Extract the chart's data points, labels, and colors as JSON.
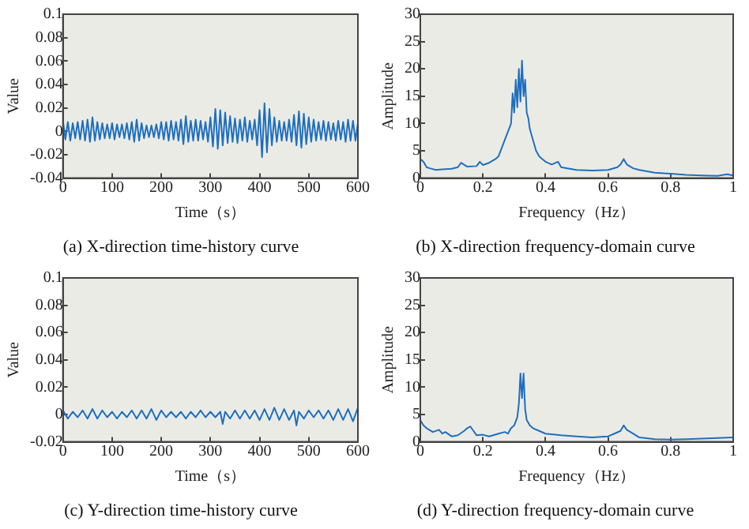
{
  "chart_data": [
    {
      "type": "line",
      "title": "(a) X-direction time-history curve",
      "xlabel": "Time（s）",
      "ylabel": "Value",
      "color": "#1f6fbf",
      "xlim": [
        0,
        600
      ],
      "ylim": [
        -0.04,
        0.1
      ],
      "xticks": [
        0,
        100,
        200,
        300,
        400,
        500,
        600
      ],
      "yticks": [
        -0.04,
        -0.02,
        0,
        0.02,
        0.04,
        0.06,
        0.08,
        0.1
      ],
      "x": [
        0,
        5,
        10,
        15,
        20,
        25,
        30,
        35,
        40,
        45,
        50,
        55,
        60,
        65,
        70,
        75,
        80,
        85,
        90,
        95,
        100,
        105,
        110,
        115,
        120,
        125,
        130,
        135,
        140,
        145,
        150,
        155,
        160,
        165,
        170,
        175,
        180,
        185,
        190,
        195,
        200,
        205,
        210,
        215,
        220,
        225,
        230,
        235,
        240,
        245,
        250,
        255,
        260,
        265,
        270,
        275,
        280,
        285,
        290,
        295,
        300,
        305,
        310,
        315,
        320,
        325,
        330,
        335,
        340,
        345,
        350,
        355,
        360,
        365,
        370,
        375,
        380,
        385,
        390,
        395,
        400,
        405,
        410,
        415,
        420,
        425,
        430,
        435,
        440,
        445,
        450,
        455,
        460,
        465,
        470,
        475,
        480,
        485,
        490,
        495,
        500,
        505,
        510,
        515,
        520,
        525,
        530,
        535,
        540,
        545,
        550,
        555,
        560,
        565,
        570,
        575,
        580,
        585,
        590,
        595,
        600
      ],
      "values": [
        0.009,
        -0.007,
        0.008,
        -0.008,
        0.007,
        -0.006,
        0.008,
        -0.007,
        0.009,
        -0.008,
        0.01,
        -0.009,
        0.012,
        -0.008,
        0.008,
        -0.007,
        0.007,
        -0.006,
        0.006,
        -0.006,
        0.007,
        -0.007,
        0.006,
        -0.005,
        0.006,
        -0.006,
        0.007,
        -0.007,
        0.008,
        -0.009,
        0.01,
        -0.008,
        0.007,
        -0.006,
        0.005,
        -0.005,
        0.005,
        -0.005,
        0.006,
        -0.006,
        0.008,
        -0.007,
        0.008,
        -0.008,
        0.009,
        -0.007,
        0.008,
        -0.008,
        0.01,
        -0.011,
        0.013,
        -0.009,
        0.009,
        -0.008,
        0.01,
        -0.008,
        0.009,
        -0.007,
        0.008,
        -0.009,
        0.012,
        -0.013,
        0.019,
        -0.015,
        0.018,
        -0.012,
        0.016,
        -0.01,
        0.013,
        -0.009,
        0.011,
        -0.01,
        0.01,
        -0.008,
        0.012,
        -0.009,
        0.009,
        -0.007,
        0.01,
        -0.012,
        0.018,
        -0.022,
        0.024,
        -0.018,
        0.019,
        -0.012,
        0.012,
        -0.009,
        0.009,
        -0.008,
        0.008,
        -0.008,
        0.01,
        -0.009,
        0.014,
        -0.012,
        0.017,
        -0.014,
        0.015,
        -0.011,
        0.012,
        -0.009,
        0.01,
        -0.008,
        0.008,
        -0.007,
        0.009,
        -0.008,
        0.008,
        -0.007,
        0.007,
        -0.008,
        0.009,
        -0.007,
        0.008,
        -0.009,
        0.01,
        -0.008,
        0.009,
        -0.008,
        0.007
      ]
    },
    {
      "type": "line",
      "title": "(b) X-direction frequency-domain curve",
      "xlabel": "Frequency（Hz）",
      "ylabel": "Amplitude",
      "color": "#1f6fbf",
      "xlim": [
        0,
        1
      ],
      "ylim": [
        0,
        30
      ],
      "xticks": [
        0,
        0.2,
        0.4,
        0.6,
        0.8,
        1
      ],
      "yticks": [
        0,
        5,
        10,
        15,
        20,
        25,
        30
      ],
      "x": [
        0,
        0.01,
        0.02,
        0.03,
        0.05,
        0.07,
        0.1,
        0.12,
        0.13,
        0.15,
        0.18,
        0.19,
        0.2,
        0.22,
        0.24,
        0.25,
        0.26,
        0.27,
        0.28,
        0.29,
        0.295,
        0.3,
        0.305,
        0.31,
        0.315,
        0.32,
        0.325,
        0.33,
        0.335,
        0.34,
        0.345,
        0.35,
        0.36,
        0.37,
        0.38,
        0.39,
        0.4,
        0.42,
        0.44,
        0.45,
        0.47,
        0.5,
        0.55,
        0.6,
        0.63,
        0.64,
        0.65,
        0.66,
        0.68,
        0.7,
        0.75,
        0.8,
        0.85,
        0.9,
        0.95,
        0.98,
        1
      ],
      "values": [
        3.5,
        3,
        2,
        1.8,
        1.5,
        1.6,
        1.7,
        2,
        2.8,
        2.1,
        2.2,
        3,
        2.4,
        2.8,
        3.5,
        4,
        5.5,
        7,
        8.5,
        10,
        15.5,
        12,
        18,
        13,
        20,
        14,
        21.5,
        15,
        18,
        12,
        11,
        9,
        7,
        5,
        4,
        3.5,
        3,
        2.5,
        3,
        2,
        1.8,
        1.5,
        1.4,
        1.5,
        2,
        2.5,
        3.5,
        2.5,
        1.8,
        1.5,
        1,
        0.8,
        0.6,
        0.5,
        0.4,
        0.7,
        0.5
      ]
    },
    {
      "type": "line",
      "title": "(c) Y-direction time-history curve",
      "xlabel": "Time（s）",
      "ylabel": "Value",
      "color": "#1f6fbf",
      "xlim": [
        0,
        600
      ],
      "ylim": [
        -0.02,
        0.1
      ],
      "xticks": [
        0,
        100,
        200,
        300,
        400,
        500,
        600
      ],
      "yticks": [
        -0.02,
        0,
        0.02,
        0.04,
        0.06,
        0.08,
        0.1
      ],
      "x": [
        0,
        10,
        20,
        30,
        40,
        50,
        60,
        70,
        80,
        90,
        100,
        110,
        120,
        130,
        140,
        150,
        160,
        170,
        180,
        190,
        200,
        210,
        220,
        230,
        240,
        250,
        260,
        270,
        280,
        290,
        300,
        310,
        320,
        325,
        330,
        340,
        350,
        360,
        370,
        380,
        390,
        400,
        410,
        420,
        430,
        440,
        450,
        460,
        470,
        475,
        480,
        490,
        500,
        510,
        520,
        530,
        540,
        550,
        560,
        570,
        580,
        590,
        600
      ],
      "values": [
        0.003,
        -0.003,
        0.002,
        -0.002,
        0.003,
        -0.003,
        0.004,
        -0.003,
        0.003,
        -0.002,
        0.002,
        -0.003,
        0.002,
        -0.002,
        0.003,
        -0.003,
        0.003,
        -0.003,
        0.004,
        -0.004,
        0.003,
        -0.002,
        0.002,
        -0.002,
        0.002,
        -0.003,
        0.002,
        -0.002,
        0.003,
        -0.002,
        0.002,
        -0.002,
        0.002,
        -0.007,
        0.002,
        -0.003,
        0.003,
        -0.003,
        0.003,
        -0.003,
        0.003,
        -0.004,
        0.004,
        -0.004,
        0.005,
        -0.004,
        0.004,
        -0.004,
        0.003,
        -0.008,
        0.002,
        -0.003,
        0.003,
        -0.002,
        0.003,
        -0.003,
        0.003,
        -0.004,
        0.004,
        -0.004,
        0.004,
        -0.005,
        0.005
      ]
    },
    {
      "type": "line",
      "title": "(d) Y-direction frequency-domain curve",
      "xlabel": "Frequency（Hz）",
      "ylabel": "Amplitude",
      "color": "#1f6fbf",
      "xlim": [
        0,
        1
      ],
      "ylim": [
        0,
        30
      ],
      "xticks": [
        0,
        0.2,
        0.4,
        0.6,
        0.8,
        1
      ],
      "yticks": [
        0,
        5,
        10,
        15,
        20,
        25,
        30
      ],
      "x": [
        0,
        0.01,
        0.02,
        0.04,
        0.06,
        0.07,
        0.08,
        0.1,
        0.12,
        0.14,
        0.15,
        0.16,
        0.17,
        0.18,
        0.2,
        0.22,
        0.25,
        0.27,
        0.28,
        0.29,
        0.3,
        0.31,
        0.315,
        0.32,
        0.325,
        0.33,
        0.335,
        0.34,
        0.35,
        0.36,
        0.38,
        0.4,
        0.45,
        0.5,
        0.55,
        0.6,
        0.62,
        0.64,
        0.65,
        0.66,
        0.68,
        0.7,
        0.75,
        0.8,
        0.85,
        0.9,
        0.95,
        1
      ],
      "values": [
        4,
        3,
        2.5,
        1.8,
        2.2,
        1.5,
        1.8,
        1,
        1.2,
        2,
        2.5,
        2.8,
        2,
        1.2,
        1.3,
        1,
        1.5,
        1.8,
        1.5,
        2.5,
        3,
        4.5,
        7,
        12.5,
        8,
        12.5,
        6,
        4,
        3,
        2.5,
        2,
        1.5,
        1.2,
        1,
        0.8,
        1,
        1.5,
        2,
        3,
        2.2,
        1.5,
        0.8,
        0.5,
        0.4,
        0.5,
        0.6,
        0.7,
        0.8
      ]
    }
  ]
}
